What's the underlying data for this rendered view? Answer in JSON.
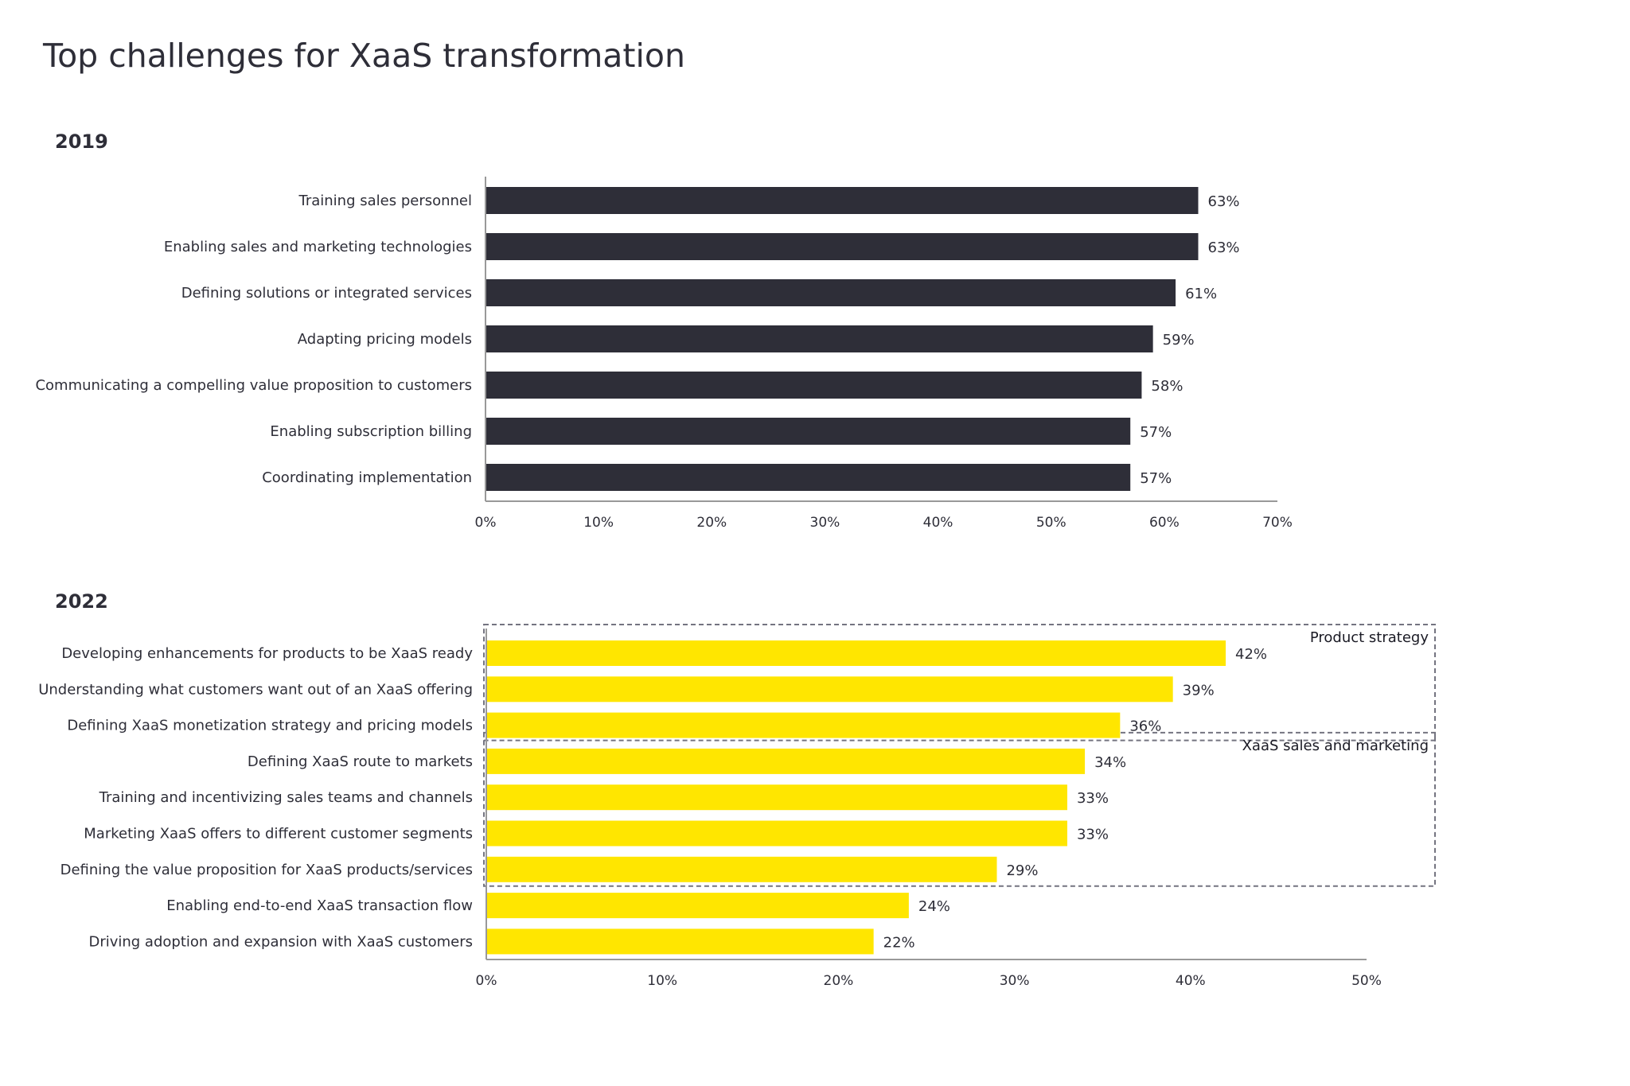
{
  "title": "Top challenges for XaaS transformation",
  "colors": {
    "bar_2019": "#2e2e38",
    "bar_2022": "#ffe600",
    "axis": "#999999",
    "group_box": "#747480"
  },
  "chart_data": [
    {
      "type": "bar",
      "orientation": "horizontal",
      "title": "2019",
      "categories": [
        "Training sales personnel",
        "Enabling sales and marketing technologies",
        "Defining solutions or integrated services",
        "Adapting pricing models",
        "Communicating a compelling value proposition to customers",
        "Enabling subscription billing",
        "Coordinating implementation"
      ],
      "values": [
        63,
        63,
        61,
        59,
        58,
        57,
        57
      ],
      "value_labels": [
        "63%",
        "63%",
        "61%",
        "59%",
        "58%",
        "57%",
        "57%"
      ],
      "xlim": [
        0,
        70
      ],
      "ticks": [
        0,
        10,
        20,
        30,
        40,
        50,
        60,
        70
      ],
      "tick_labels": [
        "0%",
        "10%",
        "20%",
        "30%",
        "40%",
        "50%",
        "60%",
        "70%"
      ],
      "xlabel": "",
      "ylabel": "",
      "grid": false,
      "color": "#2e2e38"
    },
    {
      "type": "bar",
      "orientation": "horizontal",
      "title": "2022",
      "categories": [
        "Developing enhancements for products to be XaaS ready",
        "Understanding what customers want out of an XaaS offering",
        "Defining XaaS monetization strategy and pricing models",
        "Defining XaaS route to markets",
        "Training and incentivizing sales teams and channels",
        "Marketing XaaS offers to different customer segments",
        "Defining the value proposition for XaaS products/services",
        "Enabling end-to-end XaaS transaction flow",
        "Driving adoption and expansion with XaaS customers"
      ],
      "values": [
        42,
        39,
        36,
        34,
        33,
        33,
        29,
        24,
        22
      ],
      "value_labels": [
        "42%",
        "39%",
        "36%",
        "34%",
        "33%",
        "33%",
        "29%",
        "24%",
        "22%"
      ],
      "xlim": [
        0,
        50
      ],
      "ticks": [
        0,
        10,
        20,
        30,
        40,
        50
      ],
      "tick_labels": [
        "0%",
        "10%",
        "20%",
        "30%",
        "40%",
        "50%"
      ],
      "xlabel": "",
      "ylabel": "",
      "grid": false,
      "color": "#ffe600",
      "groups": [
        {
          "label": "Product strategy",
          "first": 0,
          "last": 2
        },
        {
          "label": "XaaS sales and marketing",
          "first": 3,
          "last": 6
        }
      ]
    }
  ]
}
